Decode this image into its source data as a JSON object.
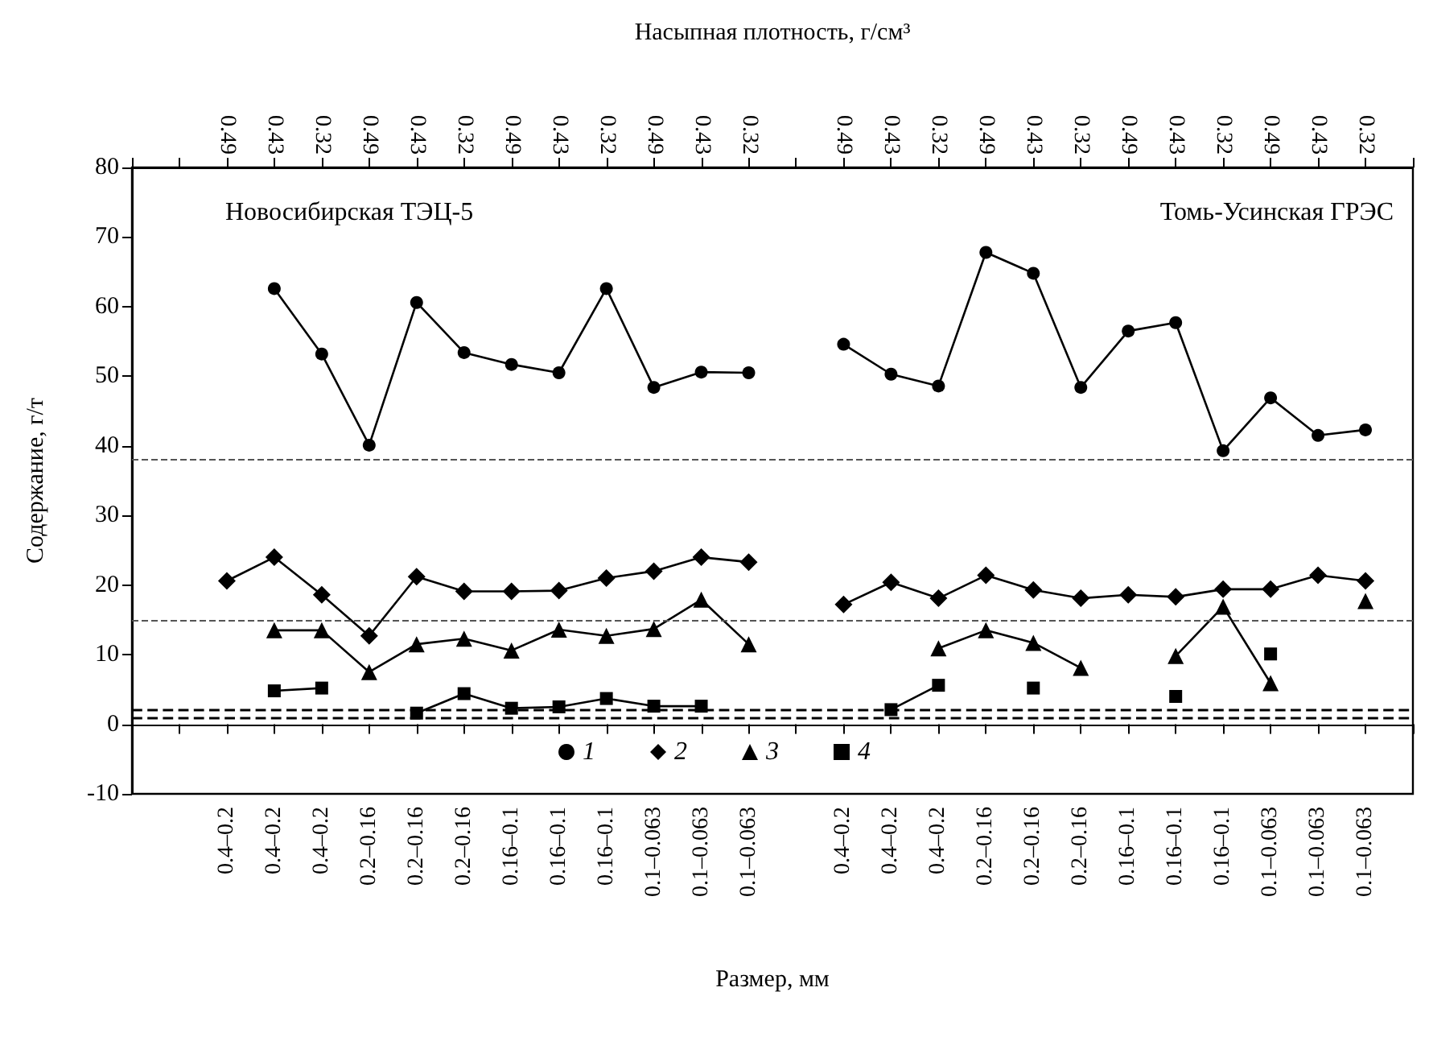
{
  "chart_data": {
    "type": "line",
    "categories": [
      null,
      null,
      "0.4–0.2",
      "0.4–0.2",
      "0.4–0.2",
      "0.2–0.16",
      "0.2–0.16",
      "0.2–0.16",
      "0.16–0.1",
      "0.16–0.1",
      "0.16–0.1",
      "0.1–0.063",
      "0.1–0.063",
      "0.1–0.063",
      null,
      "0.4–0.2",
      "0.4–0.2",
      "0.4–0.2",
      "0.2–0.16",
      "0.2–0.16",
      "0.2–0.16",
      "0.16–0.1",
      "0.16–0.1",
      "0.16–0.1",
      "0.1–0.063",
      "0.1–0.063",
      "0.1–0.063",
      null
    ],
    "series": [
      {
        "name": "1",
        "color": "#000000",
        "marker": "circle",
        "values": [
          null,
          null,
          null,
          62.6,
          53.2,
          40.1,
          60.6,
          53.4,
          51.7,
          50.5,
          62.6,
          48.4,
          50.6,
          50.5,
          null,
          54.6,
          50.3,
          48.6,
          67.8,
          64.8,
          48.4,
          56.5,
          57.7,
          39.3,
          46.9,
          41.5,
          42.3,
          null
        ]
      },
      {
        "name": "2",
        "color": "#000000",
        "marker": "diamond",
        "values": [
          null,
          null,
          20.6,
          24.0,
          18.6,
          12.7,
          21.2,
          19.1,
          19.1,
          19.2,
          21.0,
          22.0,
          24.0,
          23.3,
          null,
          17.2,
          20.4,
          18.1,
          21.4,
          19.3,
          18.1,
          18.6,
          18.3,
          19.4,
          19.4,
          21.4,
          20.6,
          null
        ]
      },
      {
        "name": "3",
        "color": "#000000",
        "marker": "triangle",
        "values": [
          null,
          null,
          null,
          13.5,
          13.5,
          7.5,
          11.5,
          12.3,
          10.6,
          13.6,
          12.7,
          13.7,
          17.9,
          11.5,
          null,
          null,
          null,
          10.9,
          13.5,
          11.7,
          8.1,
          null,
          9.8,
          16.9,
          5.9,
          null,
          17.7,
          null
        ]
      },
      {
        "name": "4",
        "color": "#000000",
        "marker": "square",
        "values": [
          null,
          null,
          null,
          4.8,
          5.2,
          null,
          1.6,
          4.4,
          2.3,
          2.5,
          3.7,
          2.6,
          2.6,
          null,
          null,
          null,
          2.1,
          5.6,
          null,
          5.2,
          null,
          null,
          4.0,
          null,
          10.1,
          null,
          null,
          null
        ]
      }
    ],
    "xlabel": "Размер, мм",
    "ylabel": "Содержание, г/т",
    "x2label": "Насыпная плотность, г/см³",
    "ylim": [
      -10,
      80
    ],
    "yticks": [
      -10,
      0,
      10,
      20,
      30,
      40,
      50,
      60,
      70,
      80
    ],
    "ref_lines": [
      {
        "axis": "y",
        "value": 38,
        "color": "#555555",
        "line_style": "dashed"
      },
      {
        "axis": "y",
        "value": 15,
        "color": "#555555",
        "line_style": "dashed"
      },
      {
        "axis": "y",
        "value": 2,
        "color": "#000000",
        "line_style": "dashed"
      },
      {
        "axis": "y",
        "value": 1,
        "color": "#000000",
        "line_style": "dashed"
      }
    ],
    "annotations": [
      "Новосибирская ТЭЦ-5",
      "Томь-Усинская ГРЭС",
      "0.49",
      "0.43",
      "0.32",
      "0.49",
      "0.43",
      "0.32",
      "0.49",
      "0.43",
      "0.32",
      "0.49",
      "0.43",
      "0.32",
      "0.49",
      "0.43",
      "0.32",
      "0.49",
      "0.43",
      "0.32",
      "0.49",
      "0.43",
      "0.32",
      "0.49",
      "0.43",
      "0.32"
    ],
    "legend": "bottom",
    "line_style": "solid"
  }
}
